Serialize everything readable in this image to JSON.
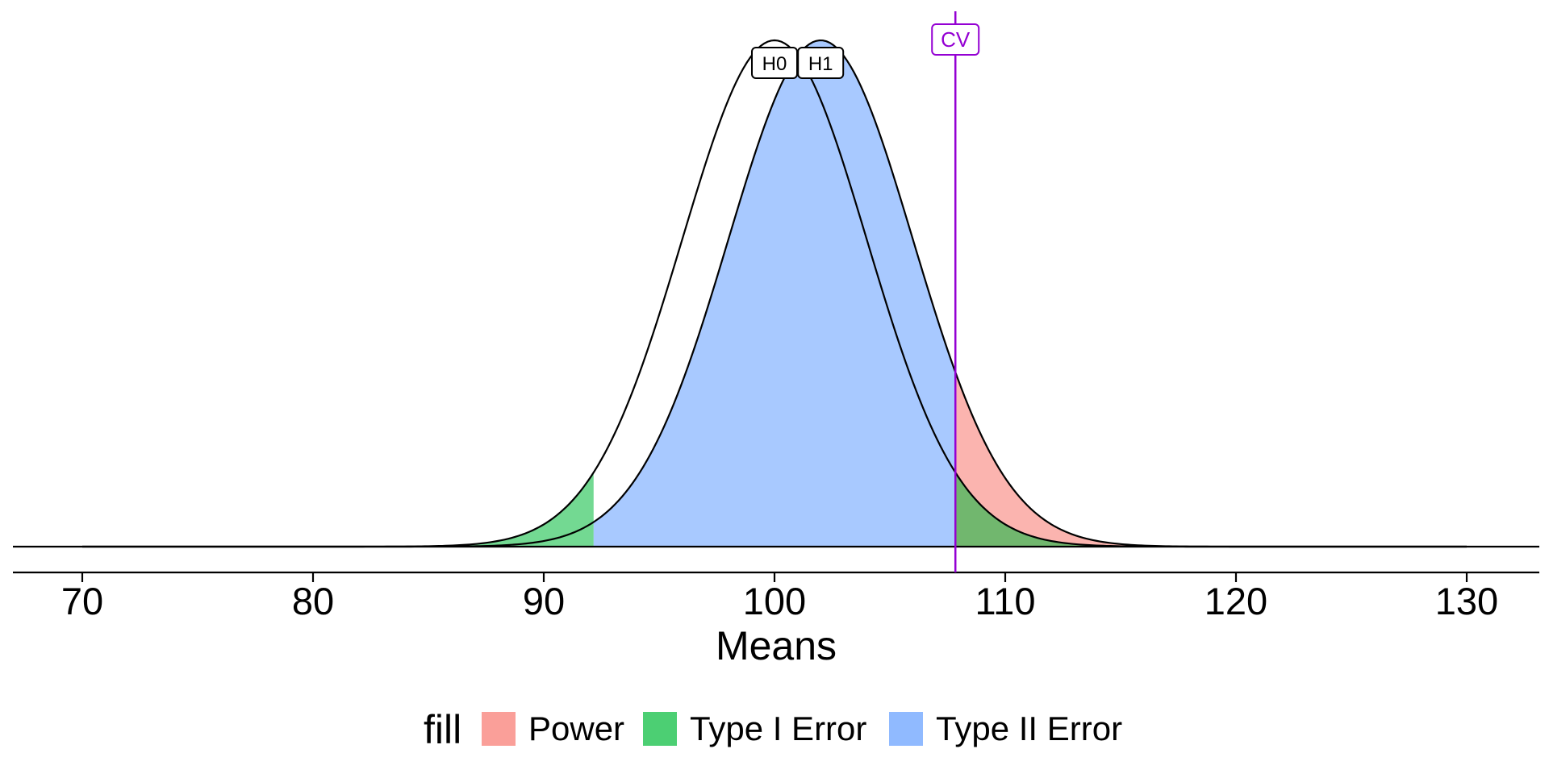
{
  "chart_data": {
    "type": "area",
    "title": "",
    "xlabel": "Means",
    "ylabel": "",
    "xlim": [
      67,
      133
    ],
    "x_ticks": [
      70,
      80,
      90,
      100,
      110,
      120,
      130
    ],
    "x_tick_labels": [
      "70",
      "80",
      "90",
      "100",
      "110",
      "120",
      "130"
    ],
    "distributions": [
      {
        "label": "H0",
        "mean": 100,
        "sd": 4.0
      },
      {
        "label": "H1",
        "mean": 102,
        "sd": 4.0
      }
    ],
    "x_range": [
      70,
      130
    ],
    "critical_values": {
      "lower": 92.16,
      "upper": 107.84
    },
    "cv_label": "CV",
    "cv_color": "#9400D3",
    "regions": [
      {
        "name": "Power",
        "color": "#F8766D",
        "curve": "H1",
        "from": 107.84,
        "to": 130
      },
      {
        "name": "Type I Error",
        "color": "#00BA38",
        "curve": "H0",
        "from": 70,
        "to": 92.16
      },
      {
        "name": "Type I Error",
        "color": "#00BA38",
        "curve": "H0",
        "from": 107.84,
        "to": 130
      },
      {
        "name": "Type II Error",
        "color": "#619CFF",
        "curve": "H1",
        "from": 92.16,
        "to": 107.84
      }
    ],
    "legend": {
      "title": "fill",
      "position": "bottom",
      "items": [
        {
          "label": "Power",
          "color": "#F8766D"
        },
        {
          "label": "Type I Error",
          "color": "#00BA38"
        },
        {
          "label": "Type II Error",
          "color": "#619CFF"
        }
      ]
    },
    "grid": false
  }
}
